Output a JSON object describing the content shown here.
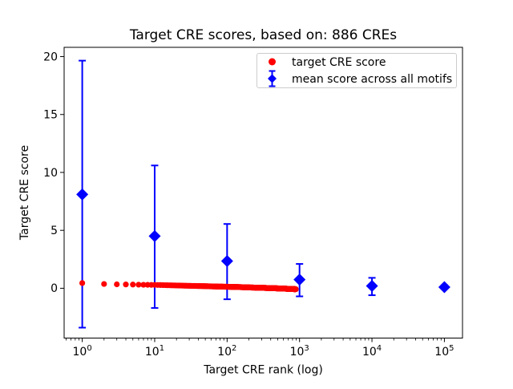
{
  "chart_data": {
    "type": "scatter",
    "title": "Target CRE scores, based on: 886 CREs",
    "xlabel": "Target CRE rank (log)",
    "ylabel": "Target CRE score",
    "xscale": "log",
    "xlim": [
      0.562,
      177828
    ],
    "ylim": [
      -4.3,
      20.8
    ],
    "yticks": [
      0,
      5,
      10,
      15,
      20
    ],
    "xticks": [
      1,
      10,
      100,
      1000,
      10000,
      100000
    ],
    "xtick_labels": [
      {
        "base": "10",
        "exp": "0"
      },
      {
        "base": "10",
        "exp": "1"
      },
      {
        "base": "10",
        "exp": "2"
      },
      {
        "base": "10",
        "exp": "3"
      },
      {
        "base": "10",
        "exp": "4"
      },
      {
        "base": "10",
        "exp": "5"
      }
    ],
    "grid": false,
    "legend_position": "upper right",
    "series": [
      {
        "name": "target CRE score",
        "marker": "circle",
        "color": "#ff0000",
        "n_points": 886,
        "samples": [
          [
            1,
            0.45
          ],
          [
            2,
            0.37
          ],
          [
            3,
            0.34
          ],
          [
            5,
            0.32
          ],
          [
            7,
            0.3
          ],
          [
            10,
            0.29
          ],
          [
            15,
            0.26
          ],
          [
            20,
            0.24
          ],
          [
            30,
            0.21
          ],
          [
            50,
            0.18
          ],
          [
            70,
            0.15
          ],
          [
            100,
            0.13
          ],
          [
            150,
            0.1
          ],
          [
            200,
            0.07
          ],
          [
            300,
            0.04
          ],
          [
            400,
            0.01
          ],
          [
            500,
            -0.01
          ],
          [
            600,
            -0.03
          ],
          [
            700,
            -0.05
          ],
          [
            800,
            -0.07
          ],
          [
            886,
            -0.08
          ]
        ]
      },
      {
        "name": "mean score across all motifs",
        "marker": "diamond",
        "color": "#0000ff",
        "error_bars": true,
        "points": [
          {
            "x": 1,
            "y": 8.1,
            "lo": -3.4,
            "hi": 19.65
          },
          {
            "x": 10,
            "y": 4.5,
            "lo": -1.7,
            "hi": 10.6
          },
          {
            "x": 100,
            "y": 2.35,
            "lo": -0.95,
            "hi": 5.55
          },
          {
            "x": 1000,
            "y": 0.75,
            "lo": -0.7,
            "hi": 2.1
          },
          {
            "x": 10000,
            "y": 0.2,
            "lo": -0.6,
            "hi": 0.9
          },
          {
            "x": 100000,
            "y": 0.1,
            "lo": -0.05,
            "hi": 0.25
          }
        ]
      }
    ]
  },
  "colors": {
    "target": "#ff0000",
    "mean": "#0000ff",
    "axes": "#000000",
    "legend_border": "#cccccc",
    "background": "#ffffff"
  }
}
